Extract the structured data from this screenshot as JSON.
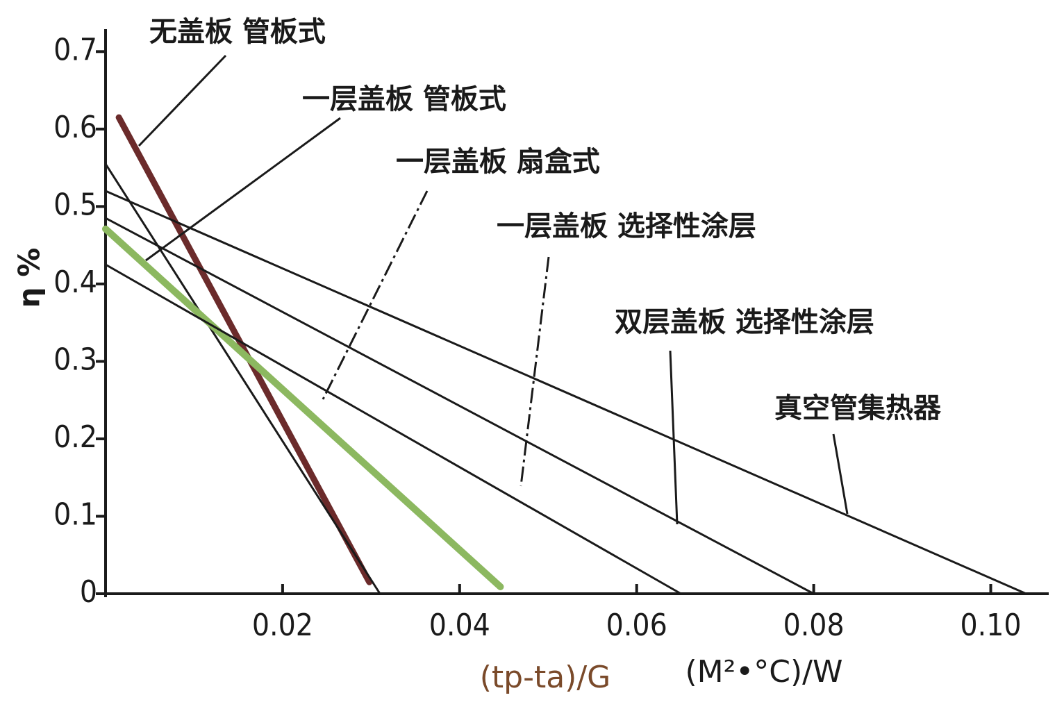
{
  "chart_data": {
    "type": "line",
    "y_label": "η %",
    "x_label": "(tp-ta)/G",
    "x_unit": "(M²•°C)/W",
    "xlim": [
      0,
      0.106
    ],
    "ylim": [
      0,
      0.72
    ],
    "xticks": [
      {
        "value": 0.02,
        "label": "0.02"
      },
      {
        "value": 0.04,
        "label": "0.04"
      },
      {
        "value": 0.06,
        "label": "0.06"
      },
      {
        "value": 0.08,
        "label": "0.08"
      },
      {
        "value": 0.1,
        "label": "0.10"
      }
    ],
    "yticks": [
      0,
      {
        "value": 0.1,
        "label": "0.1"
      },
      {
        "value": 0.2,
        "label": "0.2"
      },
      {
        "value": 0.3,
        "label": "0.3"
      },
      {
        "value": 0.4,
        "label": "0.4"
      },
      {
        "value": 0.5,
        "label": "0.5"
      },
      {
        "value": 0.6,
        "label": "0.6"
      },
      {
        "value": 0.7,
        "label": "0.7"
      }
    ],
    "series": [
      {
        "name": "无盖板 管板式",
        "color": "#6b2b2b",
        "width": 9,
        "x": [
          0.0015,
          0.0298
        ],
        "values": [
          0.615,
          0.015
        ]
      },
      {
        "name": "一层盖板 管板式",
        "color": "#1a1a1a",
        "width": 3,
        "x": [
          0,
          0.031
        ],
        "values": [
          0.555,
          0
        ]
      },
      {
        "name": "一层盖板 扇盒式",
        "color": "#8cb860",
        "width": 10,
        "x": [
          0,
          0.0446
        ],
        "values": [
          0.471,
          0.009
        ]
      },
      {
        "name": "一层盖板 选择性涂层",
        "color": "#1a1a1a",
        "width": 3,
        "x": [
          0,
          0.065
        ],
        "values": [
          0.425,
          0
        ]
      },
      {
        "name": "双层盖板 选择性涂层",
        "color": "#1a1a1a",
        "width": 3,
        "x": [
          0,
          0.08
        ],
        "values": [
          0.485,
          0
        ]
      },
      {
        "name": "真空管集热器",
        "color": "#1a1a1a",
        "width": 3,
        "x": [
          0,
          0.104
        ],
        "values": [
          0.52,
          0
        ]
      }
    ]
  }
}
